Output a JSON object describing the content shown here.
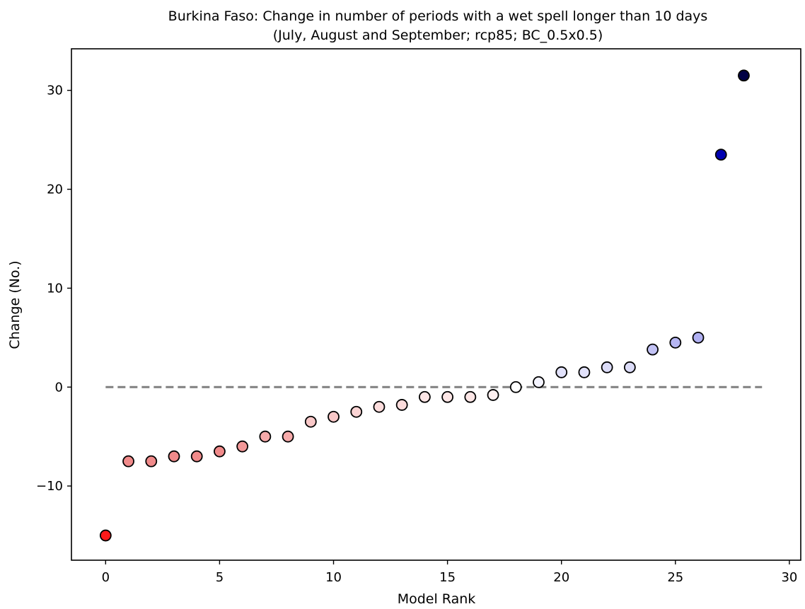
{
  "chart_data": {
    "type": "scatter",
    "title": "Burkina Faso: Change in number of periods with a wet spell longer than 10 days",
    "subtitle": "(July, August and September; rcp85; BC_0.5x0.5)",
    "xlabel": "Model Rank",
    "ylabel": "Change (No.)",
    "xlim": [
      -1.5,
      30.5
    ],
    "ylim": [
      -17.5,
      34.2
    ],
    "xticks": [
      0,
      5,
      10,
      15,
      20,
      25,
      30
    ],
    "yticks": [
      -10,
      0,
      10,
      20,
      30
    ],
    "xtick_labels": [
      "0",
      "5",
      "10",
      "15",
      "20",
      "25",
      "30"
    ],
    "ytick_labels": [
      "−10",
      "0",
      "10",
      "20",
      "30"
    ],
    "grid": false,
    "legend": "none",
    "reference_line": {
      "y": 0,
      "x_start": 0,
      "x_end": 28.8,
      "style": "dashed",
      "color": "#808080"
    },
    "x": [
      0,
      1,
      2,
      3,
      4,
      5,
      6,
      7,
      8,
      9,
      10,
      11,
      12,
      13,
      14,
      15,
      16,
      17,
      18,
      19,
      20,
      21,
      22,
      23,
      24,
      25,
      26,
      27,
      28
    ],
    "y": [
      -15,
      -7.5,
      -7.5,
      -7,
      -7,
      -6.5,
      -6,
      -5,
      -5,
      -3.5,
      -3,
      -2.5,
      -2,
      -1.8,
      -1,
      -1,
      -1,
      -0.8,
      0,
      0.5,
      1.5,
      1.5,
      2,
      2,
      3.8,
      4.5,
      5,
      23.5,
      31.5
    ],
    "colors": [
      "#ff1a1a",
      "#f08a8a",
      "#f08a8a",
      "#f08a8a",
      "#f08a8a",
      "#f08a8a",
      "#f29898",
      "#f6aaaa",
      "#f6aaaa",
      "#f9c8c8",
      "#f9c8c8",
      "#fad4d4",
      "#fcdcdc",
      "#fcdcdc",
      "#fde6e6",
      "#fde6e6",
      "#fde6e6",
      "#fef0f0",
      "#ffffff",
      "#f4f4ff",
      "#e2e2fb",
      "#e2e2fb",
      "#dcdcf8",
      "#dcdcf8",
      "#c2c2f4",
      "#b6b6f2",
      "#b0b0f2",
      "#0000b0",
      "#000044"
    ]
  }
}
